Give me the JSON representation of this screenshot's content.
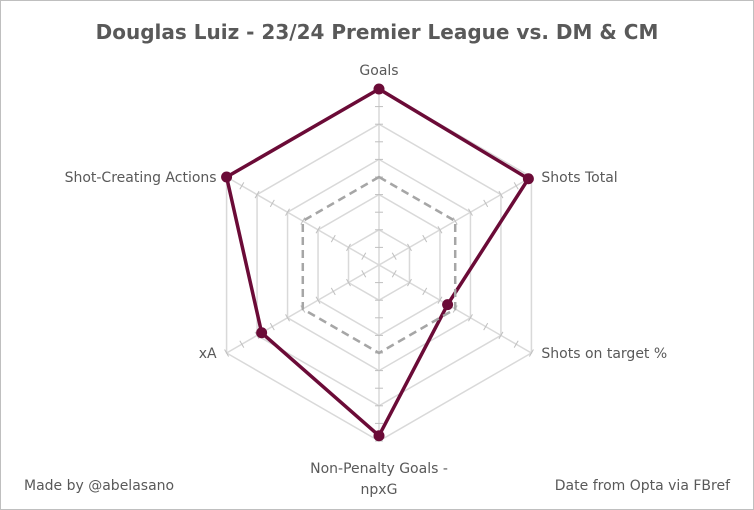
{
  "chart_data": {
    "type": "radar",
    "title": "Douglas Luiz - 23/24 Premier League vs. DM & CM",
    "axes": [
      [
        "Goals"
      ],
      [
        "Shots Total"
      ],
      [
        "Shots on target %"
      ],
      [
        "Non-Penalty Goals -",
        "npxG"
      ],
      [
        "xA"
      ],
      [
        "Shot-Creating Actions"
      ]
    ],
    "rmax": 1,
    "rings": 5,
    "series": [
      {
        "values": [
          1.0,
          0.98,
          0.45,
          0.97,
          0.77,
          1.0
        ],
        "color": "#6b0b37",
        "style": "solid",
        "markers": true
      },
      {
        "values": [
          0.5,
          0.5,
          0.5,
          0.5,
          0.5,
          0.5
        ],
        "color": "#a6a6a6",
        "style": "dashed",
        "markers": false
      }
    ],
    "grid": true
  },
  "footer": {
    "left": "Made by @abelasano",
    "right": "Date from Opta via FBref"
  }
}
